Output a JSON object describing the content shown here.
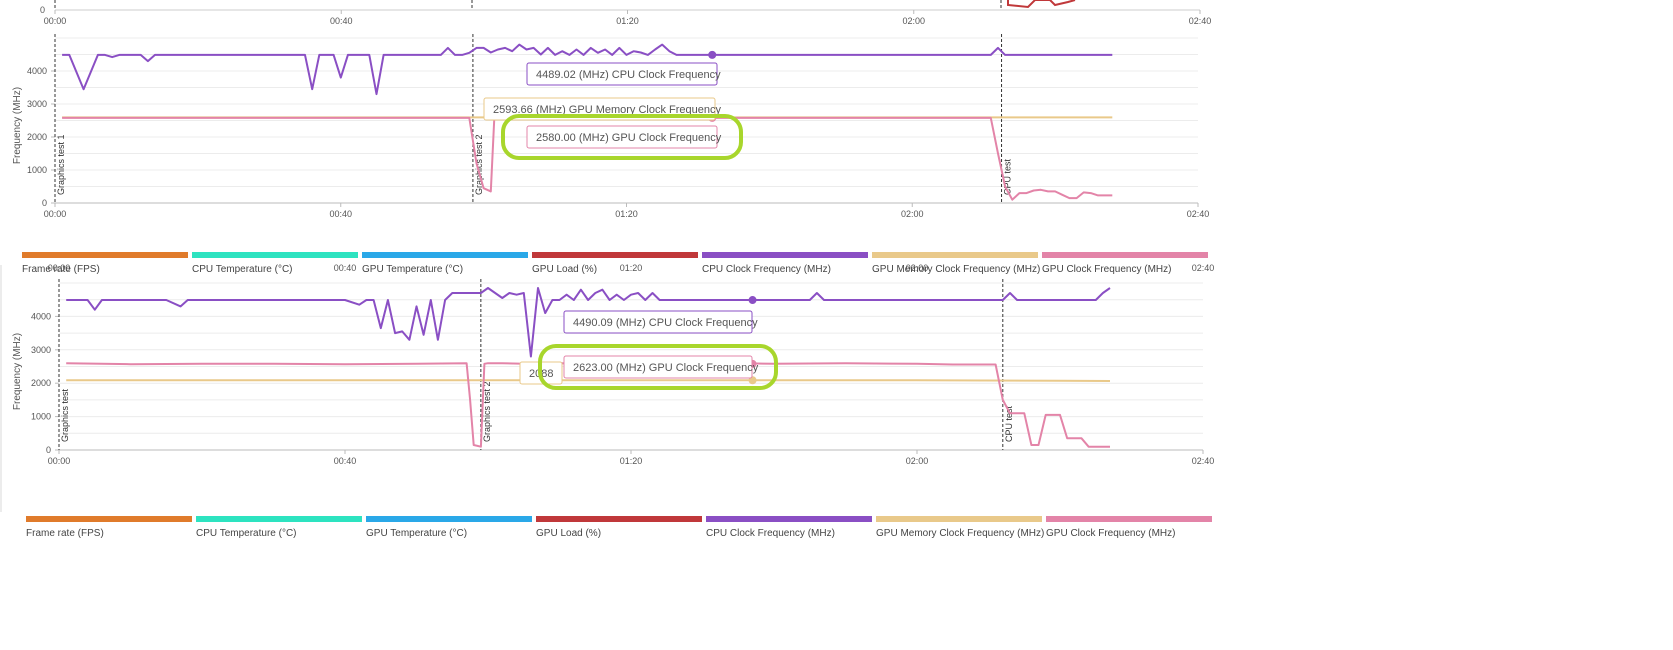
{
  "legend": [
    {
      "label": "Frame rate (FPS)",
      "color": "#e07b2b"
    },
    {
      "label": "CPU Temperature (°C)",
      "color": "#2de3c0"
    },
    {
      "label": "GPU Temperature (°C)",
      "color": "#2aa8e8"
    },
    {
      "label": "GPU Load (%)",
      "color": "#c0383a"
    },
    {
      "label": "CPU Clock Frequency (MHz)",
      "color": "#8a4fc4"
    },
    {
      "label": "GPU Memory Clock Frequency (MHz)",
      "color": "#e9c98a"
    },
    {
      "label": "GPU Clock Frequency (MHz)",
      "color": "#e384a8"
    }
  ],
  "highlight_color": "#a8d62c",
  "chart_data": [
    {
      "type": "line",
      "ylabel": "Frequency (MHz)",
      "xticks": [
        "00:00",
        "00:40",
        "01:20",
        "02:00",
        "02:40"
      ],
      "top_xticks": [
        "00:00",
        "00:40",
        "01:20",
        "02:00",
        "02:40"
      ],
      "yticks": [
        0,
        1000,
        2000,
        3000,
        4000
      ],
      "xlim": [
        0,
        160
      ],
      "ylim": [
        0,
        5000
      ],
      "markers": [
        {
          "x": 0,
          "label": "Graphics test 1"
        },
        {
          "x": 58.5,
          "label": "Graphics test 2"
        },
        {
          "x": 132.5,
          "label": "CPU test"
        }
      ],
      "series": [
        {
          "name": "CPU Clock Frequency (MHz)",
          "color": "#8a4fc4",
          "x": [
            1,
            2,
            4,
            6,
            7,
            8,
            9,
            10,
            11,
            12,
            13,
            14,
            15,
            18,
            20,
            22,
            24,
            26,
            28,
            30,
            32,
            34,
            35,
            36,
            37,
            38,
            39,
            40,
            41,
            42,
            43,
            44,
            45,
            46,
            47,
            48,
            49,
            50,
            52,
            54,
            55,
            56,
            57,
            58,
            59,
            60,
            61,
            62,
            63,
            64,
            65,
            66,
            67,
            68,
            69,
            70,
            71,
            72,
            73,
            74,
            75,
            76,
            77,
            78,
            79,
            80,
            81,
            82,
            83,
            84,
            85,
            86,
            87,
            88,
            90,
            95,
            100,
            105,
            110,
            115,
            120,
            125,
            130,
            131,
            132,
            133,
            134,
            140,
            145,
            148
          ],
          "y": [
            4489,
            4489,
            3450,
            4489,
            4489,
            4420,
            4489,
            4489,
            4489,
            4489,
            4300,
            4489,
            4489,
            4489,
            4489,
            4489,
            4489,
            4489,
            4489,
            4489,
            4489,
            4489,
            4489,
            3450,
            4489,
            4489,
            4489,
            3800,
            4489,
            4489,
            4489,
            4489,
            3300,
            4489,
            4489,
            4489,
            4489,
            4489,
            4489,
            4489,
            4700,
            4489,
            4489,
            4550,
            4700,
            4700,
            4560,
            4650,
            4700,
            4600,
            4800,
            4650,
            4700,
            4500,
            4700,
            4489,
            4600,
            4489,
            4650,
            4489,
            4700,
            4550,
            4650,
            4489,
            4700,
            4489,
            4600,
            4560,
            4489,
            4650,
            4800,
            4600,
            4489,
            4489,
            4489,
            4489,
            4489,
            4489,
            4489,
            4489,
            4489,
            4489,
            4489,
            4489,
            4700,
            4489,
            4489,
            4489,
            4489,
            4489
          ]
        },
        {
          "name": "GPU Memory Clock Frequency (MHz)",
          "color": "#e9c98a",
          "x": [
            1,
            20,
            40,
            58,
            60,
            80,
            100,
            120,
            132,
            140,
            148
          ],
          "y": [
            2593.66,
            2593.66,
            2593.66,
            2593.66,
            2593.66,
            2593.66,
            2593.66,
            2593.66,
            2593.66,
            2593.66,
            2593.66
          ]
        },
        {
          "name": "GPU Clock Frequency (MHz)",
          "color": "#e384a8",
          "x": [
            1,
            10,
            20,
            30,
            40,
            50,
            57,
            58,
            59,
            60,
            61,
            61.5,
            62,
            70,
            80,
            90,
            100,
            110,
            120,
            131,
            132,
            133,
            134,
            135,
            136,
            137,
            138,
            139,
            140,
            141,
            142,
            143,
            144,
            145,
            146,
            148
          ],
          "y": [
            2580,
            2580,
            2580,
            2580,
            2580,
            2580,
            2580,
            2580,
            1200,
            450,
            350,
            2580,
            2580,
            2580,
            2580,
            2580,
            2580,
            2580,
            2580,
            2580,
            1500,
            500,
            100,
            300,
            300,
            380,
            400,
            350,
            350,
            250,
            150,
            150,
            320,
            300,
            230,
            230
          ]
        }
      ],
      "tooltips": [
        {
          "text": "4489.02 (MHz) CPU Clock Frequency",
          "color": "#8a4fc4",
          "highlight": false
        },
        {
          "text": "2593.66 (MHz) GPU Memory Clock Frequency",
          "color": "#e9c98a",
          "highlight": false
        },
        {
          "text": "2580.00 (MHz) GPU Clock Frequency",
          "color": "#e384a8",
          "highlight": true
        }
      ],
      "hover_x": 92
    },
    {
      "type": "line",
      "ylabel": "Frequency (MHz)",
      "xticks": [
        "00:00",
        "00:40",
        "01:20",
        "02:00",
        "02:40"
      ],
      "top_xticks": [
        "00:00",
        "00:40",
        "01:20",
        "02:00",
        "02:40"
      ],
      "yticks": [
        0,
        1000,
        2000,
        3000,
        4000
      ],
      "xlim": [
        0,
        160
      ],
      "ylim": [
        0,
        5000
      ],
      "markers": [
        {
          "x": 0,
          "label": "Graphics test"
        },
        {
          "x": 59,
          "label": "Graphics test 2"
        },
        {
          "x": 132,
          "label": "CPU test"
        }
      ],
      "series": [
        {
          "name": "CPU Clock Frequency (MHz)",
          "color": "#8a4fc4",
          "x": [
            1,
            4,
            5,
            6,
            8,
            10,
            15,
            17,
            18,
            20,
            25,
            30,
            35,
            40,
            42,
            43,
            44,
            45,
            46,
            47,
            48,
            49,
            50,
            51,
            52,
            53,
            54,
            55,
            56,
            57,
            58,
            59,
            60,
            62,
            63,
            64,
            65,
            66,
            67,
            68,
            69,
            70,
            71,
            72,
            73,
            74,
            75,
            76,
            77,
            78,
            79,
            80,
            81,
            82,
            83,
            84,
            85,
            86,
            88,
            90,
            95,
            100,
            105,
            106,
            107,
            110,
            115,
            120,
            125,
            130,
            131,
            132,
            133,
            134,
            135,
            140,
            145,
            146,
            147
          ],
          "y": [
            4490,
            4490,
            4200,
            4490,
            4490,
            4490,
            4490,
            4300,
            4490,
            4490,
            4490,
            4490,
            4490,
            4490,
            4350,
            4490,
            4490,
            3650,
            4490,
            3500,
            3550,
            3300,
            4300,
            3450,
            4490,
            3300,
            4490,
            4700,
            4700,
            4700,
            4700,
            4700,
            4850,
            4550,
            4700,
            4650,
            4700,
            2800,
            4850,
            4100,
            4490,
            4490,
            4650,
            4490,
            4800,
            4490,
            4700,
            4800,
            4490,
            4650,
            4490,
            4650,
            4700,
            4490,
            4700,
            4490,
            4490,
            4490,
            4490,
            4490,
            4490,
            4490,
            4490,
            4700,
            4490,
            4490,
            4490,
            4490,
            4490,
            4490,
            4490,
            4490,
            4700,
            4490,
            4490,
            4490,
            4490,
            4700,
            4850
          ]
        },
        {
          "name": "GPU Memory Clock Frequency (MHz)",
          "color": "#e9c98a",
          "x": [
            1,
            20,
            40,
            60,
            80,
            100,
            120,
            140,
            147
          ],
          "y": [
            2088,
            2088,
            2088,
            2088,
            2088,
            2088,
            2088,
            2075,
            2065
          ]
        },
        {
          "name": "GPU Clock Frequency (MHz)",
          "color": "#e384a8",
          "x": [
            1,
            10,
            20,
            30,
            40,
            50,
            57,
            57.5,
            58,
            59,
            59.5,
            60,
            62,
            65,
            70,
            80,
            90,
            100,
            110,
            120,
            125,
            130,
            131,
            132,
            133,
            134,
            135,
            136,
            137,
            138,
            139,
            140,
            141,
            142,
            143,
            144,
            145,
            146,
            147
          ],
          "y": [
            2600,
            2570,
            2580,
            2580,
            2570,
            2580,
            2600,
            1500,
            150,
            100,
            2580,
            2600,
            2600,
            2580,
            2600,
            2580,
            2620,
            2580,
            2600,
            2580,
            2560,
            2560,
            2560,
            1500,
            1100,
            1100,
            1100,
            150,
            150,
            1050,
            1050,
            1050,
            350,
            350,
            350,
            100,
            100,
            100,
            100
          ]
        }
      ],
      "tooltips": [
        {
          "text": "4490.09 (MHz) CPU Clock Frequency",
          "color": "#8a4fc4",
          "highlight": false
        },
        {
          "text": "2088",
          "color": "#e9c98a",
          "highlight": false
        },
        {
          "text": "2623.00 (MHz) GPU Clock Frequency",
          "color": "#e384a8",
          "highlight": true
        }
      ],
      "hover_x": 97
    }
  ]
}
